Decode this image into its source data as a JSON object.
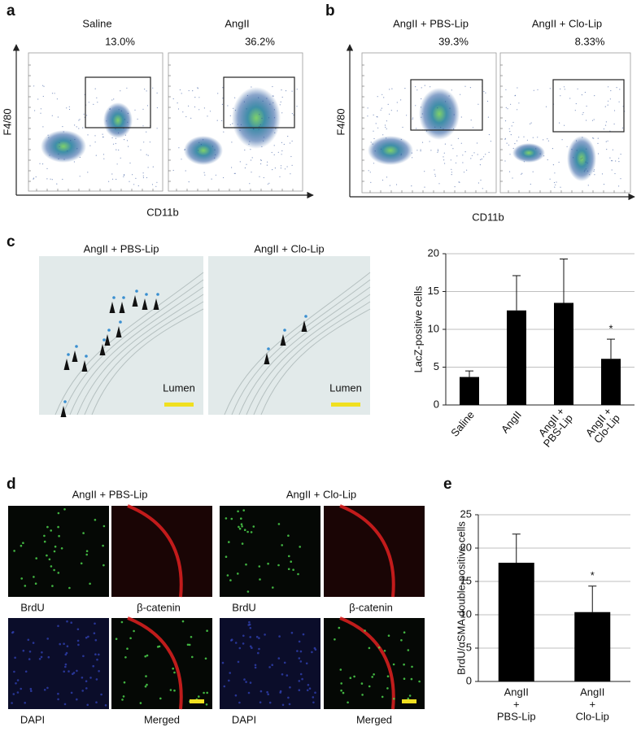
{
  "panel_labels": [
    "a",
    "b",
    "c",
    "d",
    "e"
  ],
  "flow": {
    "a": {
      "titles": [
        "Saline",
        "AngII"
      ],
      "percents": [
        "13.0%",
        "36.2%"
      ],
      "y_label": "F4/80",
      "x_label": "CD11b"
    },
    "b": {
      "titles": [
        "AngII + PBS-Lip",
        "AngII + Clo-Lip"
      ],
      "percents": [
        "39.3%",
        "8.33%"
      ],
      "y_label": "F4/80",
      "x_label": "CD11b"
    }
  },
  "histology": {
    "titles": [
      "AngII + PBS-Lip",
      "AngII + Clo-Lip"
    ],
    "lumen": [
      "Lumen",
      "Lumen"
    ]
  },
  "immuno": {
    "titles": [
      "AngII + PBS-Lip",
      "AngII + Clo-Lip"
    ],
    "labels": [
      [
        "BrdU",
        "β-catenin",
        "DAPI",
        "Merged"
      ],
      [
        "BrdU",
        "β-catenin",
        "DAPI",
        "Merged"
      ]
    ]
  },
  "chart_data": [
    {
      "type": "bar",
      "ylabel": "LacZ-positive cells",
      "categories": [
        [
          "Saline"
        ],
        [
          "AngII"
        ],
        [
          "AngII +",
          "PBS-Lip"
        ],
        [
          "AngII +",
          "Clo-Lip"
        ]
      ],
      "values": [
        3.7,
        12.5,
        13.5,
        6.1
      ],
      "errors": [
        0.8,
        4.6,
        5.8,
        2.6
      ],
      "significance": [
        null,
        null,
        null,
        "*"
      ],
      "color": "#000000",
      "ylim": [
        0,
        20
      ],
      "yticks": [
        0,
        5,
        10,
        15,
        20
      ],
      "grid": true
    },
    {
      "type": "bar",
      "ylabel": "BrdU/αSMA double-positive cells",
      "categories": [
        [
          "AngII",
          "+",
          "PBS-Lip"
        ],
        [
          "AngII",
          "+",
          "Clo-Lip"
        ]
      ],
      "values": [
        17.8,
        10.4
      ],
      "errors": [
        4.3,
        3.9
      ],
      "significance": [
        null,
        "*"
      ],
      "color": "#000000",
      "ylim": [
        0,
        25
      ],
      "yticks": [
        0,
        5,
        10,
        15,
        20,
        25
      ],
      "grid": true
    }
  ]
}
